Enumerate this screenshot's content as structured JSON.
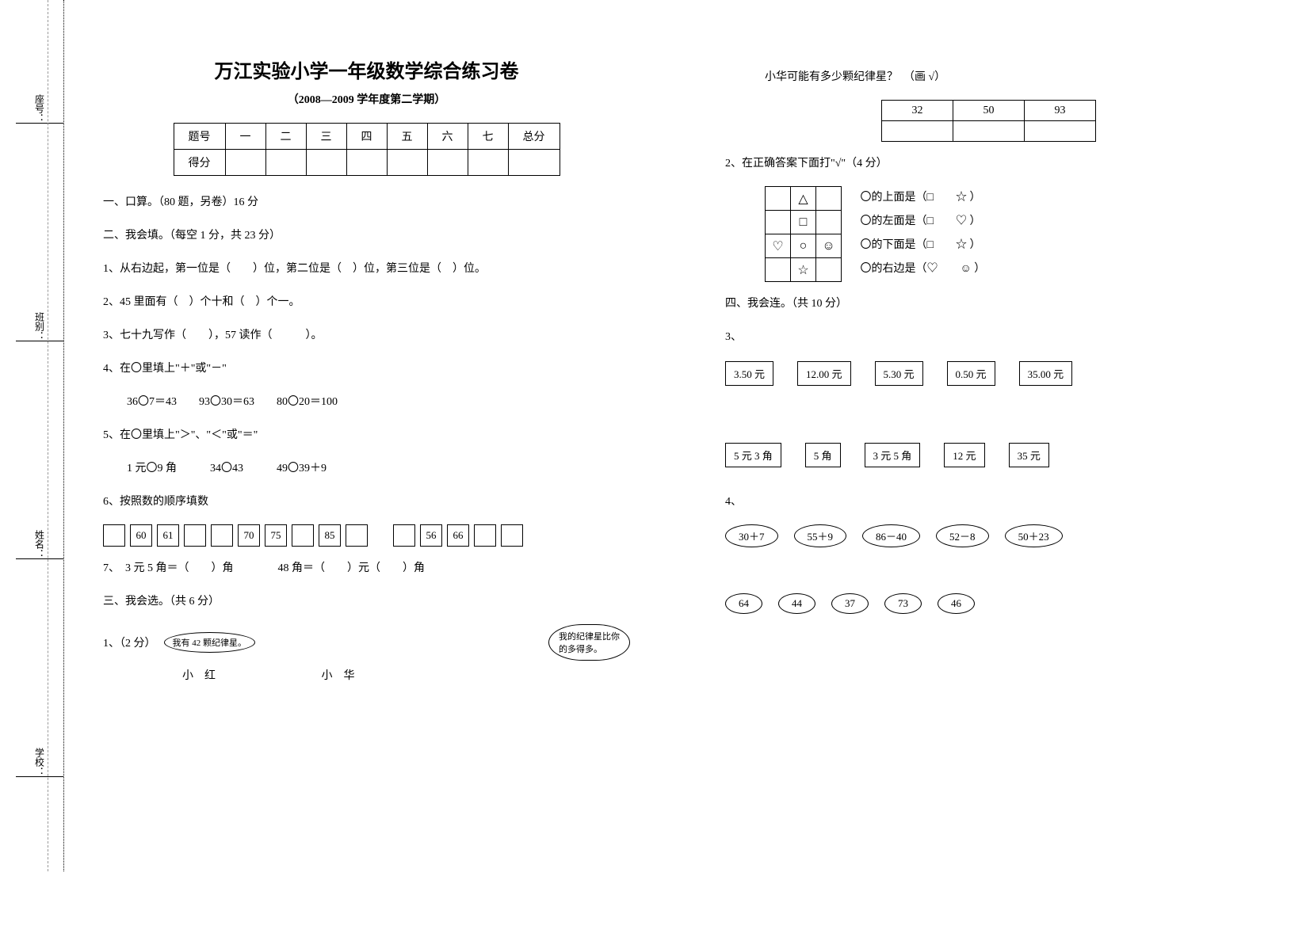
{
  "sidebar": {
    "school": "学校：",
    "name": "姓名：",
    "class": "班别：",
    "seat": "座号："
  },
  "title": "万江实验小学一年级数学综合练习卷",
  "subtitle": "（2008—2009 学年度第二学期）",
  "score_headers": [
    "题号",
    "一",
    "二",
    "三",
    "四",
    "五",
    "六",
    "七",
    "总分"
  ],
  "score_row_label": "得分",
  "s1_title": "一、口算。（80 题，另卷）16 分",
  "s2_title": "二、我会填。（每空 1 分，共 23 分）",
  "q1": "1、从右边起，第一位是（　　）位，第二位是（　）位，第三位是（　）位。",
  "q2": "2、45 里面有（　）个十和（　）个一。",
  "q3": "3、七十九写作（　　），57 读作（　　　）。",
  "q4": "4、在〇里填上\"＋\"或\"－\"",
  "q4_items": "36〇7＝43　　93〇30＝63　　80〇20＝100",
  "q5": "5、在〇里填上\"＞\"、\"＜\"或\"＝\"",
  "q5_items": "1 元〇9 角　　　34〇43　　　49〇39＋9",
  "q6": "6、按照数的顺序填数",
  "seq1": [
    "",
    "60",
    "61",
    "",
    "",
    "70",
    "75",
    "",
    "85",
    ""
  ],
  "seq2": [
    "",
    "56",
    "66",
    "",
    ""
  ],
  "q7": "7、　3 元 5 角＝（　　）角　　　　48 角＝（　　）元（　　）角",
  "s3_title": "三、我会选。（共 6 分）",
  "s3_q1_label": "1、（2 分）",
  "bubble_hong": "我有 42 颗纪律星。",
  "name_hong": "小　红",
  "name_hua": "小　华",
  "bubble_hua_l1": "我的纪律星比你",
  "bubble_hua_l2": "的多得多。",
  "r_q_top": "小华可能有多少颗纪律星？　（画 √）",
  "ans_opts": [
    "32",
    "50",
    "93"
  ],
  "s3_q2_label": "2、在正确答案下面打\"√\"（4 分）",
  "grid_cells": [
    [
      "",
      "△",
      ""
    ],
    [
      "",
      "□",
      ""
    ],
    [
      "♡",
      "○",
      "☺"
    ],
    [
      "",
      "☆",
      ""
    ]
  ],
  "grid_text": [
    "〇的上面是（□　　☆ ）",
    "〇的左面是（□　　♡ ）",
    "〇的下面是（□　　☆ ）",
    "〇的右边是（♡　　☺ ）"
  ],
  "s4_title": "四、我会连。（共 10 分）",
  "s4_q3": "3、",
  "prices_top": [
    "3.50 元",
    "12.00 元",
    "5.30 元",
    "0.50 元",
    "35.00 元"
  ],
  "prices_bot": [
    "5 元 3 角",
    "5 角",
    "3 元 5 角",
    "12 元",
    "35 元"
  ],
  "s4_q4": "4、",
  "ovals_top": [
    "30＋7",
    "55＋9",
    "86－40",
    "52－8",
    "50＋23"
  ],
  "ovals_bot": [
    "64",
    "44",
    "37",
    "73",
    "46"
  ]
}
